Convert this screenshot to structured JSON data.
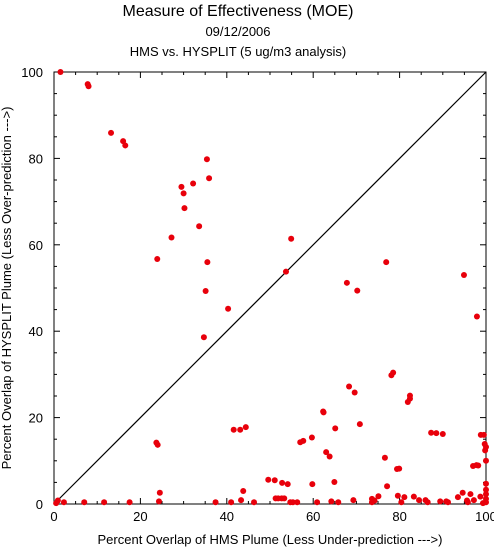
{
  "chart_data": {
    "type": "scatter",
    "title": "Measure of Effectiveness (MOE)",
    "subtitle_date": "09/12/2006",
    "subtitle": "HMS vs. HYSPLIT  (5 ug/m3 analysis)",
    "xlabel": "Percent Overlap of HMS Plume (Less Under-prediction --->)",
    "ylabel": "Percent Overlap of HYSPLIT Plume (Less Over-prediction --->)",
    "xlim": [
      0,
      100
    ],
    "ylim": [
      0,
      100
    ],
    "xticks": [
      0,
      20,
      40,
      60,
      80,
      100
    ],
    "yticks": [
      0,
      20,
      40,
      60,
      80,
      100
    ],
    "grid": false,
    "reference_line": {
      "from": [
        0,
        0
      ],
      "to": [
        100,
        100
      ]
    },
    "point_color": "#e8000b",
    "points": [
      [
        1.5,
        100
      ],
      [
        7.8,
        97.2
      ],
      [
        8.0,
        96.7
      ],
      [
        13.2,
        85.9
      ],
      [
        16.0,
        84.0
      ],
      [
        16.5,
        83.0
      ],
      [
        29.5,
        73.4
      ],
      [
        30.0,
        71.9
      ],
      [
        32.2,
        74.2
      ],
      [
        35.4,
        79.8
      ],
      [
        35.9,
        75.4
      ],
      [
        30.2,
        68.5
      ],
      [
        33.6,
        64.3
      ],
      [
        27.2,
        61.7
      ],
      [
        23.9,
        56.7
      ],
      [
        35.5,
        56.0
      ],
      [
        35.1,
        49.3
      ],
      [
        54.9,
        61.4
      ],
      [
        53.7,
        53.8
      ],
      [
        40.3,
        45.2
      ],
      [
        34.7,
        38.6
      ],
      [
        67.8,
        51.2
      ],
      [
        70.2,
        49.4
      ],
      [
        76.9,
        56.0
      ],
      [
        94.9,
        53.0
      ],
      [
        97.9,
        43.4
      ],
      [
        23.7,
        14.2
      ],
      [
        24.0,
        13.7
      ],
      [
        41.6,
        17.2
      ],
      [
        43.1,
        17.2
      ],
      [
        44.4,
        17.8
      ],
      [
        68.3,
        27.2
      ],
      [
        69.6,
        25.8
      ],
      [
        78.1,
        29.8
      ],
      [
        78.5,
        30.4
      ],
      [
        81.9,
        23.6
      ],
      [
        82.4,
        24.4
      ],
      [
        82.4,
        25.1
      ],
      [
        62.3,
        21.4
      ],
      [
        62.4,
        21.2
      ],
      [
        70.8,
        18.5
      ],
      [
        65.1,
        17.5
      ],
      [
        57.0,
        14.3
      ],
      [
        57.7,
        14.6
      ],
      [
        59.7,
        15.4
      ],
      [
        87.3,
        16.5
      ],
      [
        88.5,
        16.4
      ],
      [
        90.0,
        16.2
      ],
      [
        63.0,
        12.0
      ],
      [
        63.8,
        11.0
      ],
      [
        76.6,
        10.7
      ],
      [
        79.4,
        8.1
      ],
      [
        79.9,
        8.2
      ],
      [
        97.0,
        8.8
      ],
      [
        98.2,
        8.9
      ],
      [
        98.8,
        16.0
      ],
      [
        99.5,
        16.0
      ],
      [
        99.7,
        13.9
      ],
      [
        100,
        13.2
      ],
      [
        99.8,
        12.4
      ],
      [
        100,
        10.0
      ],
      [
        24.5,
        2.6
      ],
      [
        24.3,
        0.6
      ],
      [
        43.3,
        0.9
      ],
      [
        43.8,
        3.0
      ],
      [
        49.6,
        5.6
      ],
      [
        51.1,
        5.5
      ],
      [
        52.8,
        4.9
      ],
      [
        51.3,
        1.3
      ],
      [
        51.9,
        1.3
      ],
      [
        52.7,
        1.3
      ],
      [
        53.3,
        1.3
      ],
      [
        54.7,
        0.4
      ],
      [
        55.3,
        0.4
      ],
      [
        54.1,
        4.6
      ],
      [
        59.8,
        4.6
      ],
      [
        64.2,
        0.6
      ],
      [
        64.9,
        5.1
      ],
      [
        69.3,
        0.9
      ],
      [
        73.6,
        1.2
      ],
      [
        74.2,
        0.8
      ],
      [
        75.1,
        1.8
      ],
      [
        77.1,
        4.1
      ],
      [
        79.6,
        1.9
      ],
      [
        81.1,
        1.6
      ],
      [
        83.3,
        1.7
      ],
      [
        84.5,
        0.9
      ],
      [
        86.0,
        0.9
      ],
      [
        86.5,
        0.4
      ],
      [
        89.4,
        0.6
      ],
      [
        90.8,
        0.6
      ],
      [
        93.5,
        1.6
      ],
      [
        94.6,
        2.6
      ],
      [
        95.6,
        0.8
      ],
      [
        96.4,
        2.3
      ],
      [
        97.2,
        0.9
      ],
      [
        97.8,
        9.0
      ],
      [
        98.7,
        1.7
      ],
      [
        99.3,
        0.2
      ],
      [
        100,
        0.4
      ],
      [
        100,
        1.2
      ],
      [
        100,
        2.3
      ],
      [
        100,
        3.3
      ],
      [
        100,
        4.7
      ],
      [
        0.5,
        0.2
      ],
      [
        0.9,
        0.8
      ],
      [
        2.3,
        0.4
      ],
      [
        7.0,
        0.4
      ],
      [
        11.6,
        0.4
      ],
      [
        17.5,
        0.4
      ],
      [
        37.4,
        0.4
      ],
      [
        41.0,
        0.4
      ],
      [
        46.3,
        0.4
      ],
      [
        56.3,
        0.4
      ],
      [
        60.9,
        0.4
      ],
      [
        65.8,
        0.4
      ],
      [
        73.6,
        0.4
      ],
      [
        80.4,
        0.4
      ],
      [
        91.2,
        0.4
      ],
      [
        95.8,
        0.4
      ]
    ]
  }
}
